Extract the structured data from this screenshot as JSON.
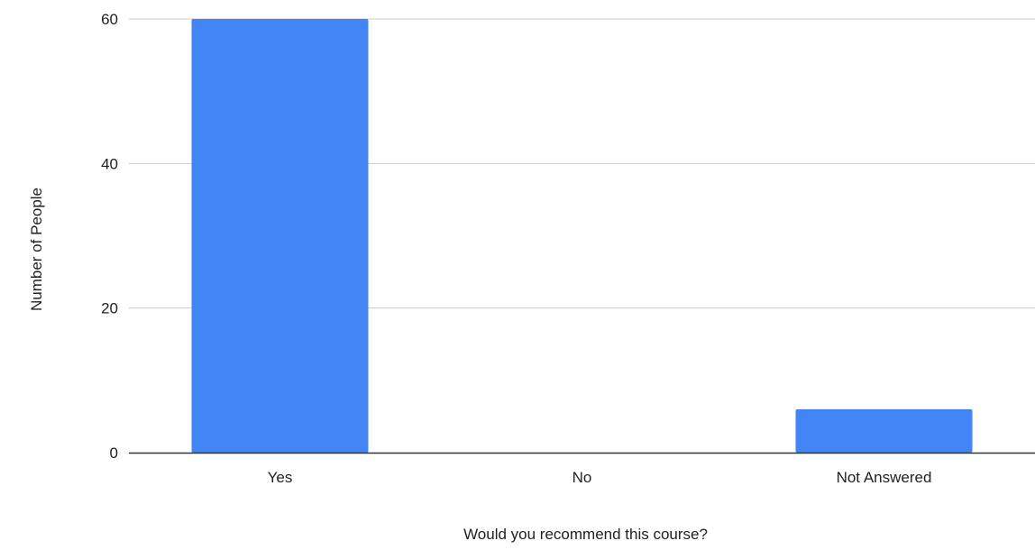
{
  "colors": {
    "bar": "#4285f4",
    "gridline": "#cccccc",
    "baseline": "#333333",
    "text": "#222222"
  },
  "chart_data": {
    "type": "bar",
    "title": "",
    "categories": [
      "Yes",
      "No",
      "Not Answered"
    ],
    "values": [
      60,
      0,
      6
    ],
    "xlabel": "Would you recommend this course?",
    "ylabel": "Number of People",
    "ylim": [
      0,
      60
    ],
    "yticks": [
      "0",
      "20",
      "40",
      "60"
    ],
    "grid": true,
    "legend": "none"
  }
}
